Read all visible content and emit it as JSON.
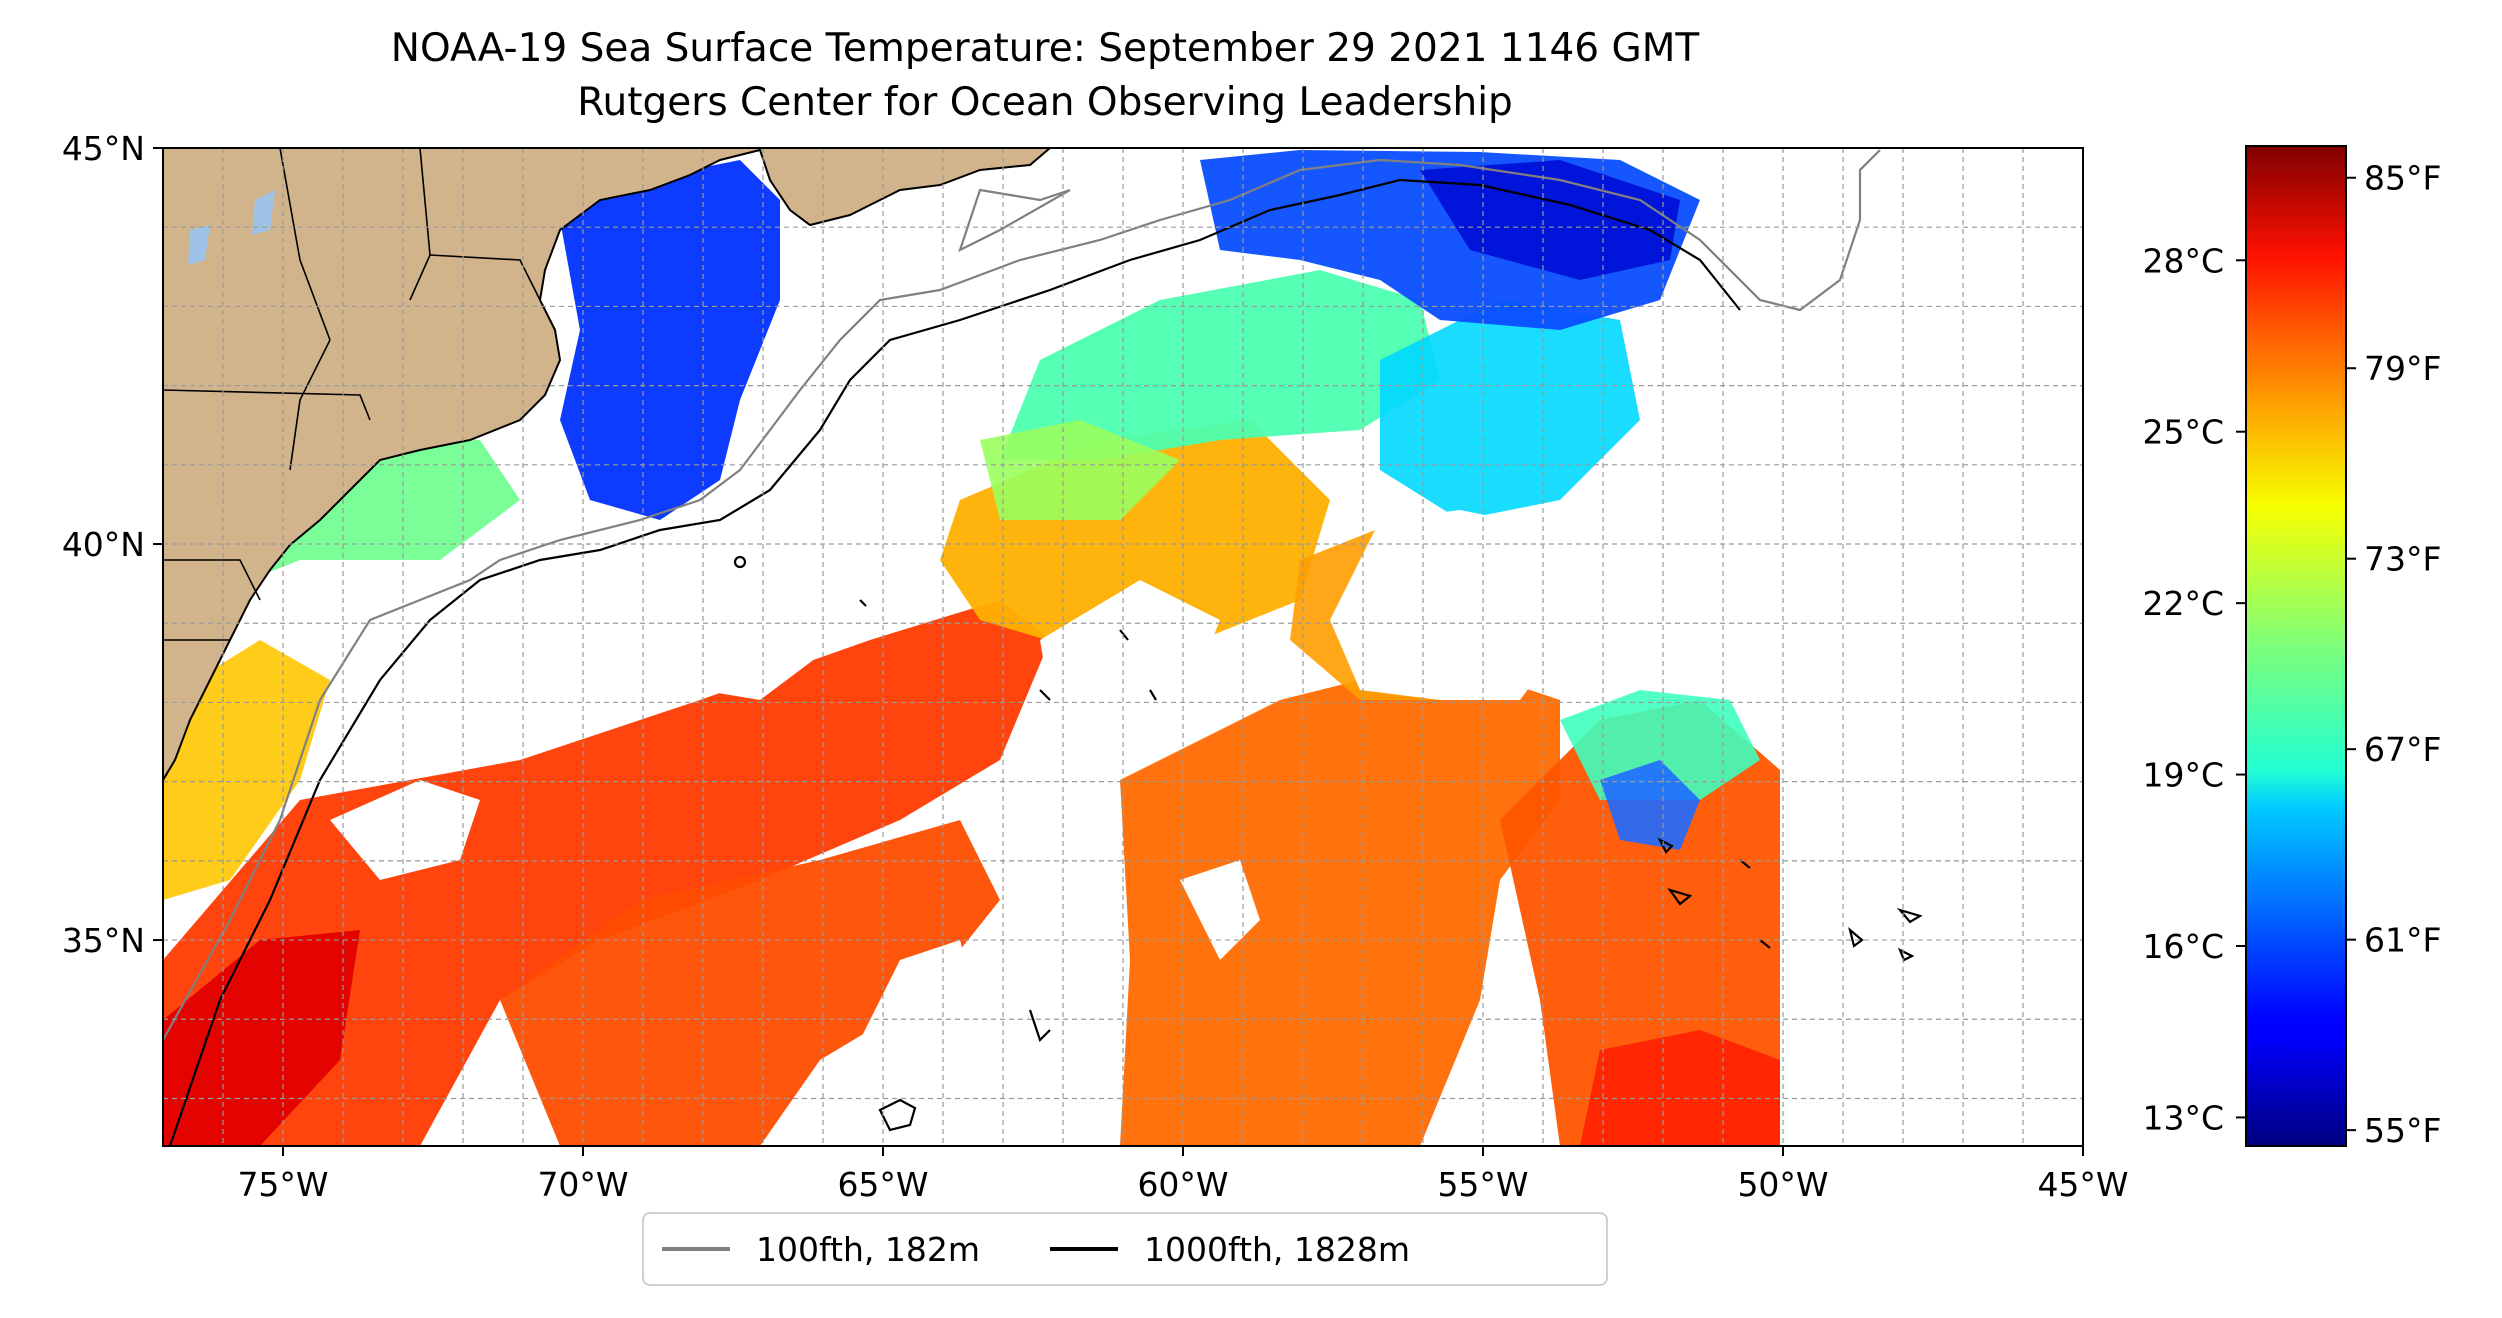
{
  "title": "NOAA-19 Sea Surface Temperature: September 29 2021 1146 GMT",
  "subtitle": "Rutgers Center for Ocean Observing Leadership",
  "map": {
    "lon_range": [
      -77,
      -45
    ],
    "lat_range": [
      32.4,
      45
    ],
    "lon_ticks": [
      "75°W",
      "70°W",
      "65°W",
      "60°W",
      "55°W",
      "50°W",
      "45°W"
    ],
    "lon_tick_values": [
      -75,
      -70,
      -65,
      -60,
      -55,
      -50,
      -45
    ],
    "lat_ticks": [
      "45°N",
      "40°N",
      "35°N"
    ],
    "lat_tick_values": [
      45,
      40,
      35
    ],
    "grid": true,
    "land_color": "#d2b48c",
    "lake_color": "#9fc3e7",
    "no_data_color": "#ffffff"
  },
  "colorbar": {
    "colormap": "jet",
    "fahrenheit_ticks": [
      "55°F",
      "61°F",
      "67°F",
      "73°F",
      "79°F",
      "85°F"
    ],
    "fahrenheit_values": [
      55,
      61,
      67,
      73,
      79,
      85
    ],
    "celsius_ticks": [
      "13°C",
      "16°C",
      "19°C",
      "22°C",
      "25°C",
      "28°C"
    ],
    "celsius_values": [
      13,
      16,
      19,
      22,
      25,
      28
    ],
    "range_f": [
      54.5,
      86
    ]
  },
  "legend": {
    "items": [
      {
        "label": "100fth, 182m",
        "color": "#808080"
      },
      {
        "label": "1000fth, 1828m",
        "color": "#000000"
      }
    ]
  }
}
